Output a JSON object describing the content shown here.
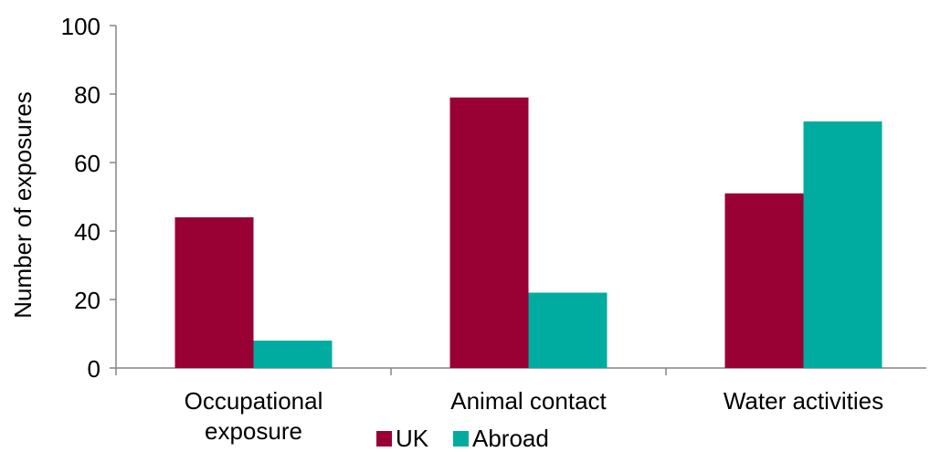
{
  "chart_data": {
    "type": "bar",
    "categories": [
      "Occupational exposure",
      "Animal contact",
      "Water activities"
    ],
    "category_lines": [
      [
        "Occupational",
        "exposure"
      ],
      [
        "Animal contact"
      ],
      [
        "Water activities"
      ]
    ],
    "series": [
      {
        "name": "UK",
        "values": [
          44,
          79,
          51
        ],
        "color": "#990033"
      },
      {
        "name": "Abroad",
        "values": [
          8,
          22,
          72
        ],
        "color": "#00ACA0"
      }
    ],
    "ylabel": "Number of exposures",
    "ylim": [
      0,
      100
    ],
    "yticks": [
      0,
      20,
      40,
      60,
      80,
      100
    ],
    "grid": false,
    "legend_position": "bottom"
  }
}
